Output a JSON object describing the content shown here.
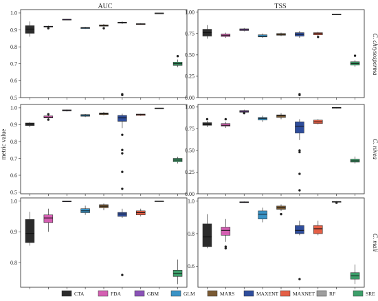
{
  "chart_data": {
    "type": "boxplot",
    "ylabel": "metric value",
    "columns": [
      "AUC",
      "TSS"
    ],
    "rows": [
      "C. chrysosperma",
      "C. nivea",
      "C. mali"
    ],
    "models": [
      {
        "name": "CTA",
        "color": "#2b2b2b"
      },
      {
        "name": "FDA",
        "color": "#d45fb2"
      },
      {
        "name": "GBM",
        "color": "#8a52b7"
      },
      {
        "name": "GLM",
        "color": "#3a93c6"
      },
      {
        "name": "MARS",
        "color": "#7a5a33"
      },
      {
        "name": "MAXENT",
        "color": "#2e4d9c"
      },
      {
        "name": "MAXNET",
        "color": "#e55f46"
      },
      {
        "name": "RF",
        "color": "#9e9e9e"
      },
      {
        "name": "SRE",
        "color": "#3d9f6a"
      }
    ],
    "panels": [
      {
        "id": "auc-chrysosperma",
        "column": "AUC",
        "row": "C. chrysosperma",
        "ylim": [
          0.5,
          1.02
        ],
        "yticks": [
          0.5,
          0.6,
          0.7,
          0.8,
          0.9,
          1.0
        ],
        "ytick_labels": [
          "0.5",
          "0.6",
          "0.7",
          "0.8",
          "0.9",
          "1.0"
        ],
        "boxes": [
          {
            "model": "CTA",
            "min": 0.86,
            "q1": 0.88,
            "median": 0.905,
            "q3": 0.925,
            "max": 0.95,
            "outliers": []
          },
          {
            "model": "FDA",
            "min": 0.915,
            "q1": 0.918,
            "median": 0.92,
            "q3": 0.922,
            "max": 0.925,
            "outliers": [
              0.91
            ]
          },
          {
            "model": "GBM",
            "min": 0.958,
            "q1": 0.96,
            "median": 0.962,
            "q3": 0.963,
            "max": 0.964,
            "outliers": []
          },
          {
            "model": "GLM",
            "min": 0.905,
            "q1": 0.908,
            "median": 0.912,
            "q3": 0.915,
            "max": 0.918,
            "outliers": []
          },
          {
            "model": "MARS",
            "min": 0.92,
            "q1": 0.922,
            "median": 0.925,
            "q3": 0.93,
            "max": 0.935,
            "outliers": [
              0.91
            ]
          },
          {
            "model": "MAXENT",
            "min": 0.935,
            "q1": 0.94,
            "median": 0.943,
            "q3": 0.946,
            "max": 0.95,
            "outliers": [
              0.52,
              0.515
            ]
          },
          {
            "model": "MAXNET",
            "min": 0.93,
            "q1": 0.932,
            "median": 0.935,
            "q3": 0.937,
            "max": 0.94,
            "outliers": []
          },
          {
            "model": "RF",
            "min": 0.997,
            "q1": 0.998,
            "median": 0.999,
            "q3": 1.0,
            "max": 1.0,
            "outliers": []
          },
          {
            "model": "SRE",
            "min": 0.68,
            "q1": 0.69,
            "median": 0.7,
            "q3": 0.71,
            "max": 0.725,
            "outliers": [
              0.745
            ]
          }
        ]
      },
      {
        "id": "tss-chrysosperma",
        "column": "TSS",
        "row": "C. chrysosperma",
        "ylim": [
          0.0,
          1.03
        ],
        "yticks": [
          0.0,
          0.25,
          0.5,
          0.75,
          1.0
        ],
        "ytick_labels": [
          "0.00",
          "0.25",
          "0.50",
          "0.75",
          "1.00"
        ],
        "boxes": [
          {
            "model": "CTA",
            "min": 0.69,
            "q1": 0.72,
            "median": 0.76,
            "q3": 0.8,
            "max": 0.85,
            "outliers": []
          },
          {
            "model": "FDA",
            "min": 0.7,
            "q1": 0.715,
            "median": 0.73,
            "q3": 0.745,
            "max": 0.76,
            "outliers": []
          },
          {
            "model": "GBM",
            "min": 0.775,
            "q1": 0.785,
            "median": 0.795,
            "q3": 0.805,
            "max": 0.815,
            "outliers": []
          },
          {
            "model": "GLM",
            "min": 0.7,
            "q1": 0.71,
            "median": 0.72,
            "q3": 0.735,
            "max": 0.75,
            "outliers": []
          },
          {
            "model": "MARS",
            "min": 0.72,
            "q1": 0.73,
            "median": 0.74,
            "q3": 0.75,
            "max": 0.76,
            "outliers": []
          },
          {
            "model": "MAXENT",
            "min": 0.7,
            "q1": 0.72,
            "median": 0.74,
            "q3": 0.76,
            "max": 0.78,
            "outliers": [
              0.04,
              0.03
            ]
          },
          {
            "model": "MAXNET",
            "min": 0.72,
            "q1": 0.735,
            "median": 0.75,
            "q3": 0.76,
            "max": 0.77,
            "outliers": [
              0.71
            ]
          },
          {
            "model": "RF",
            "min": 0.97,
            "q1": 0.972,
            "median": 0.975,
            "q3": 0.978,
            "max": 0.98,
            "outliers": []
          },
          {
            "model": "SRE",
            "min": 0.36,
            "q1": 0.38,
            "median": 0.4,
            "q3": 0.42,
            "max": 0.44,
            "outliers": [
              0.49
            ]
          }
        ]
      },
      {
        "id": "auc-nivea",
        "column": "AUC",
        "row": "C. nivea",
        "ylim": [
          0.49,
          1.02
        ],
        "yticks": [
          0.5,
          0.6,
          0.7,
          0.8,
          0.9,
          1.0
        ],
        "ytick_labels": [
          "0.5",
          "0.6",
          "0.7",
          "0.8",
          "0.9",
          "1.0"
        ],
        "boxes": [
          {
            "model": "CTA",
            "min": 0.885,
            "q1": 0.895,
            "median": 0.905,
            "q3": 0.91,
            "max": 0.915,
            "outliers": []
          },
          {
            "model": "FDA",
            "min": 0.93,
            "q1": 0.94,
            "median": 0.945,
            "q3": 0.952,
            "max": 0.958,
            "outliers": [
              0.962,
              0.93
            ]
          },
          {
            "model": "GBM",
            "min": 0.978,
            "q1": 0.982,
            "median": 0.985,
            "q3": 0.988,
            "max": 0.99,
            "outliers": []
          },
          {
            "model": "GLM",
            "min": 0.945,
            "q1": 0.95,
            "median": 0.955,
            "q3": 0.96,
            "max": 0.963,
            "outliers": []
          },
          {
            "model": "MARS",
            "min": 0.955,
            "q1": 0.96,
            "median": 0.965,
            "q3": 0.97,
            "max": 0.975,
            "outliers": []
          },
          {
            "model": "MAXENT",
            "min": 0.88,
            "q1": 0.92,
            "median": 0.94,
            "q3": 0.955,
            "max": 0.965,
            "outliers": [
              0.84,
              0.75,
              0.73,
              0.62,
              0.52
            ]
          },
          {
            "model": "MAXNET",
            "min": 0.952,
            "q1": 0.955,
            "median": 0.96,
            "q3": 0.963,
            "max": 0.965,
            "outliers": []
          },
          {
            "model": "RF",
            "min": 0.995,
            "q1": 0.997,
            "median": 0.998,
            "q3": 0.999,
            "max": 1.0,
            "outliers": []
          },
          {
            "model": "SRE",
            "min": 0.67,
            "q1": 0.68,
            "median": 0.69,
            "q3": 0.7,
            "max": 0.71,
            "outliers": []
          }
        ]
      },
      {
        "id": "tss-nivea",
        "column": "TSS",
        "row": "C. nivea",
        "ylim": [
          0.0,
          1.03
        ],
        "yticks": [
          0.0,
          0.25,
          0.5,
          0.75,
          1.0
        ],
        "ytick_labels": [
          "0.00",
          "0.25",
          "0.50",
          "0.75",
          "1.00"
        ],
        "boxes": [
          {
            "model": "CTA",
            "min": 0.77,
            "q1": 0.79,
            "median": 0.8,
            "q3": 0.82,
            "max": 0.84,
            "outliers": [
              0.86
            ]
          },
          {
            "model": "FDA",
            "min": 0.76,
            "q1": 0.78,
            "median": 0.79,
            "q3": 0.81,
            "max": 0.83,
            "outliers": [
              0.86
            ]
          },
          {
            "model": "GBM",
            "min": 0.93,
            "q1": 0.94,
            "median": 0.95,
            "q3": 0.96,
            "max": 0.97,
            "outliers": [
              0.93
            ]
          },
          {
            "model": "GLM",
            "min": 0.83,
            "q1": 0.85,
            "median": 0.87,
            "q3": 0.88,
            "max": 0.9,
            "outliers": []
          },
          {
            "model": "MARS",
            "min": 0.86,
            "q1": 0.88,
            "median": 0.9,
            "q3": 0.91,
            "max": 0.93,
            "outliers": []
          },
          {
            "model": "MAXENT",
            "min": 0.62,
            "q1": 0.7,
            "median": 0.78,
            "q3": 0.83,
            "max": 0.86,
            "outliers": [
              0.5,
              0.48,
              0.23,
              0.04
            ]
          },
          {
            "model": "MAXNET",
            "min": 0.8,
            "q1": 0.81,
            "median": 0.83,
            "q3": 0.85,
            "max": 0.86,
            "outliers": []
          },
          {
            "model": "RF",
            "min": 0.985,
            "q1": 0.99,
            "median": 0.993,
            "q3": 0.996,
            "max": 1.0,
            "outliers": []
          },
          {
            "model": "SRE",
            "min": 0.35,
            "q1": 0.365,
            "median": 0.38,
            "q3": 0.4,
            "max": 0.43,
            "outliers": []
          }
        ]
      },
      {
        "id": "auc-mali",
        "column": "AUC",
        "row": "C. mali",
        "ylim": [
          0.72,
          1.01
        ],
        "yticks": [
          0.8,
          0.9,
          1.0
        ],
        "ytick_labels": [
          "0.8",
          "0.9",
          "1.0"
        ],
        "boxes": [
          {
            "model": "CTA",
            "min": 0.855,
            "q1": 0.865,
            "median": 0.895,
            "q3": 0.94,
            "max": 0.965,
            "outliers": []
          },
          {
            "model": "FDA",
            "min": 0.9,
            "q1": 0.93,
            "median": 0.945,
            "q3": 0.955,
            "max": 0.975,
            "outliers": []
          },
          {
            "model": "GBM",
            "min": 0.997,
            "q1": 0.998,
            "median": 0.999,
            "q3": 1.0,
            "max": 1.0,
            "outliers": []
          },
          {
            "model": "GLM",
            "min": 0.955,
            "q1": 0.962,
            "median": 0.968,
            "q3": 0.975,
            "max": 0.985,
            "outliers": []
          },
          {
            "model": "MARS",
            "min": 0.97,
            "q1": 0.978,
            "median": 0.983,
            "q3": 0.988,
            "max": 0.992,
            "outliers": []
          },
          {
            "model": "MAXENT",
            "min": 0.945,
            "q1": 0.95,
            "median": 0.958,
            "q3": 0.963,
            "max": 0.975,
            "outliers": [
              0.76
            ]
          },
          {
            "model": "MAXNET",
            "min": 0.95,
            "q1": 0.955,
            "median": 0.962,
            "q3": 0.968,
            "max": 0.975,
            "outliers": []
          },
          {
            "model": "RF",
            "min": 0.999,
            "q1": 0.999,
            "median": 1.0,
            "q3": 1.0,
            "max": 1.0,
            "outliers": []
          },
          {
            "model": "SRE",
            "min": 0.73,
            "q1": 0.755,
            "median": 0.765,
            "q3": 0.775,
            "max": 0.81,
            "outliers": []
          }
        ]
      },
      {
        "id": "tss-mali",
        "column": "TSS",
        "row": "C. mali",
        "ylim": [
          0.47,
          1.02
        ],
        "yticks": [
          0.6,
          0.8,
          1.0
        ],
        "ytick_labels": [
          "0.6",
          "0.8",
          "1.0"
        ],
        "boxes": [
          {
            "model": "CTA",
            "min": 0.71,
            "q1": 0.72,
            "median": 0.78,
            "q3": 0.86,
            "max": 0.92,
            "outliers": []
          },
          {
            "model": "FDA",
            "min": 0.75,
            "q1": 0.79,
            "median": 0.82,
            "q3": 0.84,
            "max": 0.89,
            "outliers": [
              0.72,
              0.71
            ]
          },
          {
            "model": "GBM",
            "min": 0.99,
            "q1": 0.992,
            "median": 0.994,
            "q3": 0.996,
            "max": 0.998,
            "outliers": []
          },
          {
            "model": "GLM",
            "min": 0.87,
            "q1": 0.89,
            "median": 0.92,
            "q3": 0.94,
            "max": 0.96,
            "outliers": []
          },
          {
            "model": "MARS",
            "min": 0.94,
            "q1": 0.95,
            "median": 0.96,
            "q3": 0.97,
            "max": 0.98,
            "outliers": [
              0.92
            ]
          },
          {
            "model": "MAXENT",
            "min": 0.79,
            "q1": 0.8,
            "median": 0.82,
            "q3": 0.85,
            "max": 0.88,
            "outliers": [
              0.52
            ]
          },
          {
            "model": "MAXNET",
            "min": 0.79,
            "q1": 0.8,
            "median": 0.83,
            "q3": 0.85,
            "max": 0.88,
            "outliers": []
          },
          {
            "model": "RF",
            "min": 0.994,
            "q1": 0.996,
            "median": 0.997,
            "q3": 0.998,
            "max": 1.0,
            "outliers": [
              0.99
            ]
          },
          {
            "model": "SRE",
            "min": 0.49,
            "q1": 0.52,
            "median": 0.54,
            "q3": 0.56,
            "max": 0.61,
            "outliers": []
          }
        ]
      }
    ]
  }
}
